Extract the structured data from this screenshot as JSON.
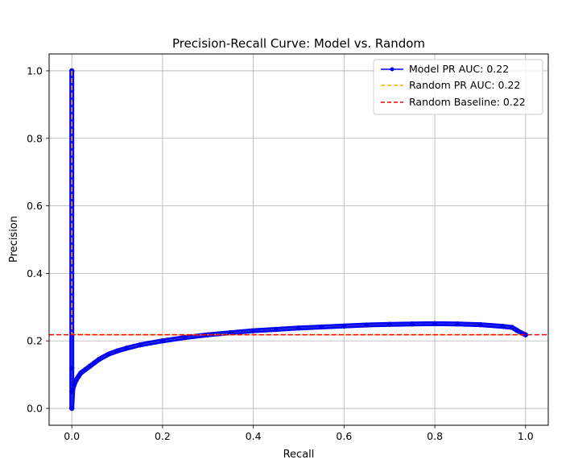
{
  "chart_data": {
    "type": "line",
    "title": "Precision-Recall Curve: Model vs. Random",
    "xlabel": "Recall",
    "ylabel": "Precision",
    "xlim": [
      -0.05,
      1.05
    ],
    "ylim": [
      -0.05,
      1.05
    ],
    "xticks": [
      0.0,
      0.2,
      0.4,
      0.6,
      0.8,
      1.0
    ],
    "xtick_labels": [
      "0.0",
      "0.2",
      "0.4",
      "0.6",
      "0.8",
      "1.0"
    ],
    "yticks": [
      0.0,
      0.2,
      0.4,
      0.6,
      0.8,
      1.0
    ],
    "ytick_labels": [
      "0.0",
      "0.2",
      "0.4",
      "0.6",
      "0.8",
      "1.0"
    ],
    "grid": true,
    "legend_position": "top-right",
    "series": [
      {
        "name": "Model PR AUC: 0.22",
        "color": "#0000ff",
        "style": "solid-with-markers",
        "x": [
          0.0,
          0.0,
          0.0,
          0.0,
          0.002,
          0.005,
          0.01,
          0.015,
          0.02,
          0.03,
          0.04,
          0.05,
          0.06,
          0.08,
          0.1,
          0.12,
          0.15,
          0.2,
          0.25,
          0.3,
          0.35,
          0.4,
          0.45,
          0.5,
          0.55,
          0.6,
          0.65,
          0.7,
          0.75,
          0.8,
          0.85,
          0.9,
          0.95,
          0.97,
          0.98,
          0.99,
          1.0
        ],
        "y": [
          1.0,
          0.12,
          0.05,
          0.0,
          0.055,
          0.07,
          0.085,
          0.095,
          0.105,
          0.115,
          0.125,
          0.135,
          0.145,
          0.16,
          0.17,
          0.178,
          0.188,
          0.2,
          0.21,
          0.218,
          0.224,
          0.23,
          0.234,
          0.238,
          0.241,
          0.244,
          0.247,
          0.249,
          0.25,
          0.251,
          0.25,
          0.248,
          0.243,
          0.24,
          0.232,
          0.224,
          0.218
        ]
      },
      {
        "name": "Random PR AUC: 0.22",
        "color": "#ffa500",
        "style": "dashed",
        "x": [
          0.0,
          0.0,
          0.0,
          0.05,
          0.2,
          0.4,
          0.6,
          0.8,
          1.0
        ],
        "y": [
          1.0,
          0.5,
          0.22,
          0.218,
          0.218,
          0.218,
          0.218,
          0.218,
          0.218
        ]
      },
      {
        "name": "Random Baseline: 0.22",
        "color": "#ff0000",
        "style": "dashed-horizontal",
        "y_value": 0.218
      }
    ]
  }
}
